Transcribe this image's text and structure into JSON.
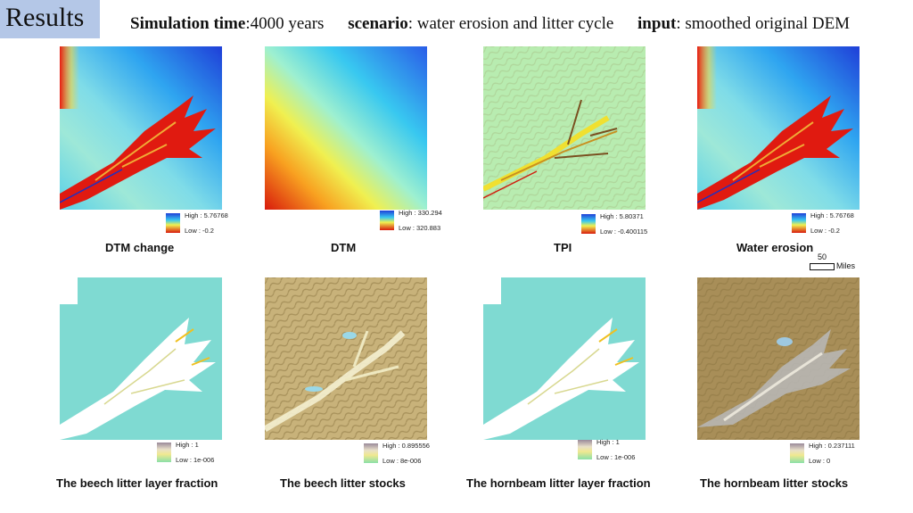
{
  "slide": {
    "title": "Results",
    "subtitle": [
      {
        "label": "Simulation time",
        "value": ":4000 years"
      },
      {
        "label": "scenario",
        "value": ": water erosion and litter cycle"
      },
      {
        "label": "input",
        "value": ": smoothed original DEM"
      }
    ]
  },
  "maps": [
    {
      "caption": "DTM change",
      "legend_high": "High : 5.76768",
      "legend_low": "Low : -0.2"
    },
    {
      "caption": "DTM",
      "legend_high": "High : 330.294",
      "legend_low": "Low : 320.883"
    },
    {
      "caption": "TPI",
      "legend_high": "High : 5.80371",
      "legend_low": "Low : -0.400115"
    },
    {
      "caption": "Water erosion",
      "legend_high": "High : 5.76768",
      "legend_low": "Low : -0.2"
    },
    {
      "caption": "The beech litter layer fraction",
      "legend_high": "High : 1",
      "legend_low": "Low : 1e-006"
    },
    {
      "caption": "The beech litter stocks",
      "legend_high": "High : 0.895556",
      "legend_low": "Low : 8e-006"
    },
    {
      "caption": "The hornbeam litter layer fraction",
      "legend_high": "High : 1",
      "legend_low": "Low : 1e-006"
    },
    {
      "caption": "The hornbeam litter stocks",
      "legend_high": "High : 0.237111",
      "legend_low": "Low : 0"
    }
  ],
  "scale_bar": {
    "value": "50",
    "unit": "Miles"
  },
  "colors": {
    "title_box": "#b4c7e7",
    "jet_low": "#1f3fd8",
    "jet_high": "#d8140c",
    "litter_fraction_bg": "#7fdad2",
    "litter_stocks_bg": "#c8b27a"
  }
}
